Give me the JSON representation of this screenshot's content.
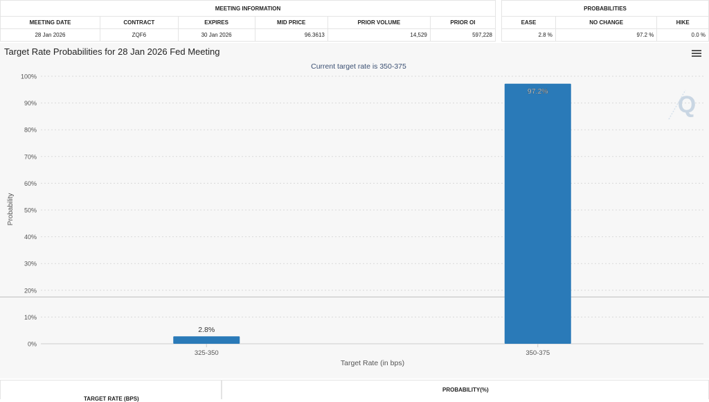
{
  "meeting_table": {
    "group_header": "MEETING INFORMATION",
    "headers": [
      "MEETING DATE",
      "CONTRACT",
      "EXPIRES",
      "MID PRICE",
      "PRIOR VOLUME",
      "PRIOR OI"
    ],
    "row": [
      "28 Jan 2026",
      "ZQF6",
      "30 Jan 2026",
      "96.3613",
      "14,529",
      "597,228"
    ]
  },
  "prob_table": {
    "group_header": "PROBABILITIES",
    "headers": [
      "EASE",
      "NO CHANGE",
      "HIKE"
    ],
    "row": [
      "2.8 %",
      "97.2 %",
      "0.0 %"
    ]
  },
  "chart_data": {
    "type": "bar",
    "title": "Target Rate Probabilities for 28 Jan 2026 Fed Meeting",
    "subtitle": "Current target rate is 350-375",
    "xlabel": "Target Rate (in bps)",
    "ylabel": "Probability",
    "categories": [
      "325-350",
      "350-375"
    ],
    "values": [
      2.8,
      97.2
    ],
    "data_labels": [
      "2.8%",
      "97.2%"
    ],
    "ylim": [
      0,
      100
    ],
    "yticks": [
      "0%",
      "10%",
      "20%",
      "30%",
      "40%",
      "50%",
      "60%",
      "70%",
      "80%",
      "90%",
      "100%"
    ],
    "bar_color": "#2a7ab8",
    "grid": true
  },
  "bottom_table": {
    "left_header": "TARGET RATE (BPS)",
    "right_header": "PROBABILITY(%)"
  },
  "icons": {
    "menu": "hamburger-menu-icon",
    "watermark": "quikstrike-q-logo"
  }
}
